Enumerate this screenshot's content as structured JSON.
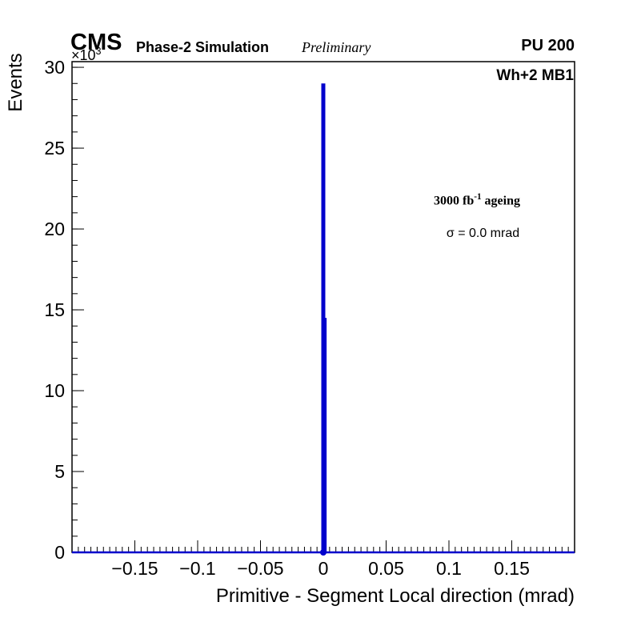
{
  "header": {
    "experiment": "CMS",
    "label": "Phase-2 Simulation",
    "sublabel": "Preliminary",
    "pileup": "PU 200"
  },
  "chart_data": {
    "type": "bar",
    "title": "",
    "xlabel": "Primitive - Segment Local direction (mrad)",
    "ylabel": "Events",
    "xlim": [
      -0.2,
      0.2
    ],
    "ylim": [
      0,
      30.35
    ],
    "grid": false,
    "legend_position": "none",
    "x_ticks": [
      -0.15,
      -0.1,
      -0.05,
      0,
      0.05,
      0.1,
      0.15
    ],
    "x_tick_labels": [
      "−0.15",
      "−0.1",
      "−0.05",
      "0",
      "0.05",
      "0.1",
      "0.15"
    ],
    "x_minor_step": 0.005,
    "y_ticks": [
      0,
      5,
      10,
      15,
      20,
      25,
      30
    ],
    "y_tick_labels": [
      "0",
      "5",
      "10",
      "15",
      "20",
      "25",
      "30"
    ],
    "y_minor_step": 1,
    "y_exponent": {
      "prefix": "×10",
      "sup": "3"
    },
    "y_unit_multiplier": 1000,
    "series": [
      {
        "name": "dt-trigger-primitive-residual",
        "color": "#0000cc",
        "bins": [
          {
            "x": 0.0,
            "y": 29.0,
            "line_width": 5
          },
          {
            "x": 0.002,
            "y": 14.5,
            "line_width": 2
          }
        ],
        "baseline_y": 0,
        "marker": {
          "x": 0.0,
          "y": 0.0
        }
      }
    ],
    "annotations": [
      {
        "name": "chamber",
        "text": "Wh+2 MB1"
      },
      {
        "name": "lumi",
        "prefix": "3000 fb",
        "sup": "-1",
        "suffix": " ageing"
      },
      {
        "name": "sigma",
        "text": "σ = 0.0 mrad"
      }
    ]
  }
}
